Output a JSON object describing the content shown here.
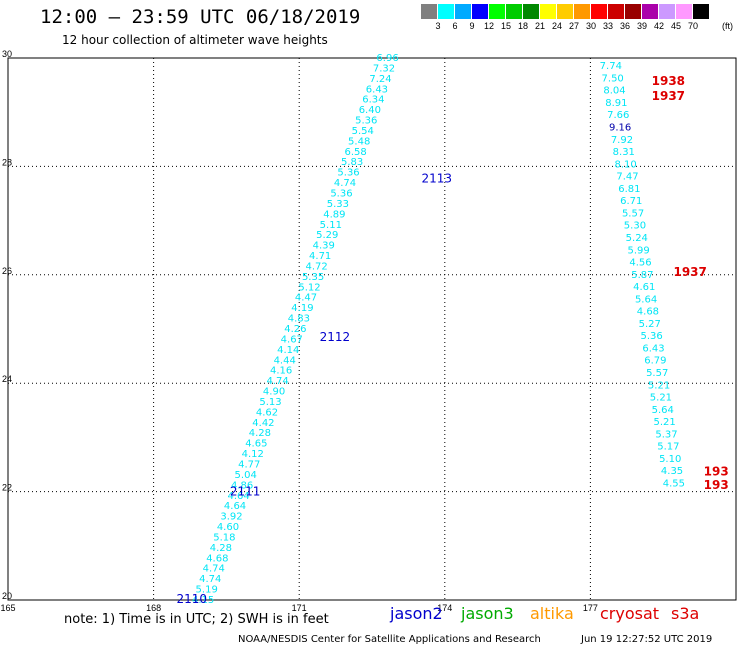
{
  "header": {
    "title": "12:00 – 23:59 UTC 06/18/2019",
    "subtitle": "12 hour collection of altimeter wave heights"
  },
  "legend": {
    "unit": "(ft)",
    "bins": [
      {
        "label": "3",
        "color": "#808080"
      },
      {
        "label": "6",
        "color": "#00ffff"
      },
      {
        "label": "9",
        "color": "#00aaff"
      },
      {
        "label": "12",
        "color": "#0000ff"
      },
      {
        "label": "15",
        "color": "#00ff00"
      },
      {
        "label": "18",
        "color": "#00cc00"
      },
      {
        "label": "21",
        "color": "#008800"
      },
      {
        "label": "24",
        "color": "#ffff00"
      },
      {
        "label": "27",
        "color": "#ffcc00"
      },
      {
        "label": "30",
        "color": "#ff9900"
      },
      {
        "label": "33",
        "color": "#ff0000"
      },
      {
        "label": "36",
        "color": "#cc0000"
      },
      {
        "label": "39",
        "color": "#990000"
      },
      {
        "label": "42",
        "color": "#aa00aa"
      },
      {
        "label": "45",
        "color": "#cc99ff"
      },
      {
        "label": "70",
        "color": "#ff99ff"
      },
      {
        "label": "",
        "color": "#000000"
      }
    ]
  },
  "map": {
    "lon_range": [
      165,
      180
    ],
    "lat_range": [
      20,
      30
    ],
    "lon_ticks": [
      "165",
      "168",
      "171",
      "174",
      "177"
    ],
    "lat_ticks": [
      "20",
      "22",
      "24",
      "26",
      "28",
      "30"
    ],
    "colors": {
      "cyan": "#00e5f5",
      "navy": "#0000aa",
      "red": "#dd0000",
      "blue": "#0000cc",
      "green": "#00aa00",
      "orange": "#ff9900"
    },
    "track_a": {
      "values": [
        "6.96",
        "7.32",
        "7.24",
        "6.43",
        "6.34",
        "6.40",
        "5.36",
        "5.54",
        "5.48",
        "6.58",
        "5.83",
        "5.36",
        "4.74",
        "5.36",
        "5.33",
        "4.89",
        "5.11",
        "5.29",
        "4.39",
        "4.71",
        "4.72",
        "5.35",
        "5.12",
        "4.47",
        "4.19",
        "4.83",
        "4.26",
        "4.67",
        "4.14",
        "4.44",
        "4.16",
        "4.74",
        "4.90",
        "5.13",
        "4.62",
        "4.42",
        "4.28",
        "4.65",
        "4.12",
        "4.77",
        "5.04",
        "4.86",
        "4.64",
        "4.64",
        "3.92",
        "4.60",
        "5.18",
        "4.28",
        "4.68",
        "4.74",
        "4.74",
        "5.19",
        "4.15"
      ],
      "start": [
        173.05,
        30.0
      ],
      "end": [
        169.25,
        20.0
      ]
    },
    "track_b": {
      "values": [
        "7.74",
        "7.50",
        "8.04",
        "8.91",
        "7.66",
        "9.16",
        "7.92",
        "8.31",
        "8.10",
        "7.47",
        "6.81",
        "6.71",
        "5.57",
        "5.30",
        "5.24",
        "5.99",
        "4.56",
        "5.87",
        "4.61",
        "5.64",
        "4.68",
        "5.27",
        "5.36",
        "6.43",
        "6.79",
        "5.57",
        "5.21",
        "5.21",
        "5.64",
        "5.21",
        "5.37",
        "5.17",
        "5.10",
        "4.35",
        "4.55"
      ],
      "start": [
        177.65,
        29.85
      ],
      "end": [
        178.95,
        22.15
      ],
      "navy_indices": [
        5
      ]
    },
    "time_labels": [
      {
        "text": "2113",
        "lon": 174.15,
        "lat": 27.78
      },
      {
        "text": "2112",
        "lon": 172.05,
        "lat": 24.85
      },
      {
        "text": "2111",
        "lon": 170.2,
        "lat": 22.0
      },
      {
        "text": "2110",
        "lon": 169.1,
        "lat": 20.02
      }
    ],
    "red_labels": [
      {
        "text": "1938",
        "lon": 178.95,
        "lat": 29.58
      },
      {
        "text": "1937",
        "lon": 178.95,
        "lat": 29.3
      },
      {
        "text": "1937",
        "lon": 179.4,
        "lat": 26.05
      },
      {
        "text": "193",
        "lon": 179.85,
        "lat": 22.37
      },
      {
        "text": "193",
        "lon": 179.85,
        "lat": 22.12
      }
    ]
  },
  "footer": {
    "note": "note:  1) Time is in UTC;  2) SWH is in feet",
    "missions": [
      {
        "name": "jason2",
        "color": "#0000cc"
      },
      {
        "name": "jason3",
        "color": "#00aa00"
      },
      {
        "name": "altika",
        "color": "#ff9900"
      },
      {
        "name": "cryosat",
        "color": "#dd0000"
      },
      {
        "name": "s3a",
        "color": "#dd0000"
      }
    ],
    "credit": "NOAA/NESDIS Center for Satellite Applications and Research",
    "timestamp": "Jun 19 12:27:52 UTC 2019"
  }
}
